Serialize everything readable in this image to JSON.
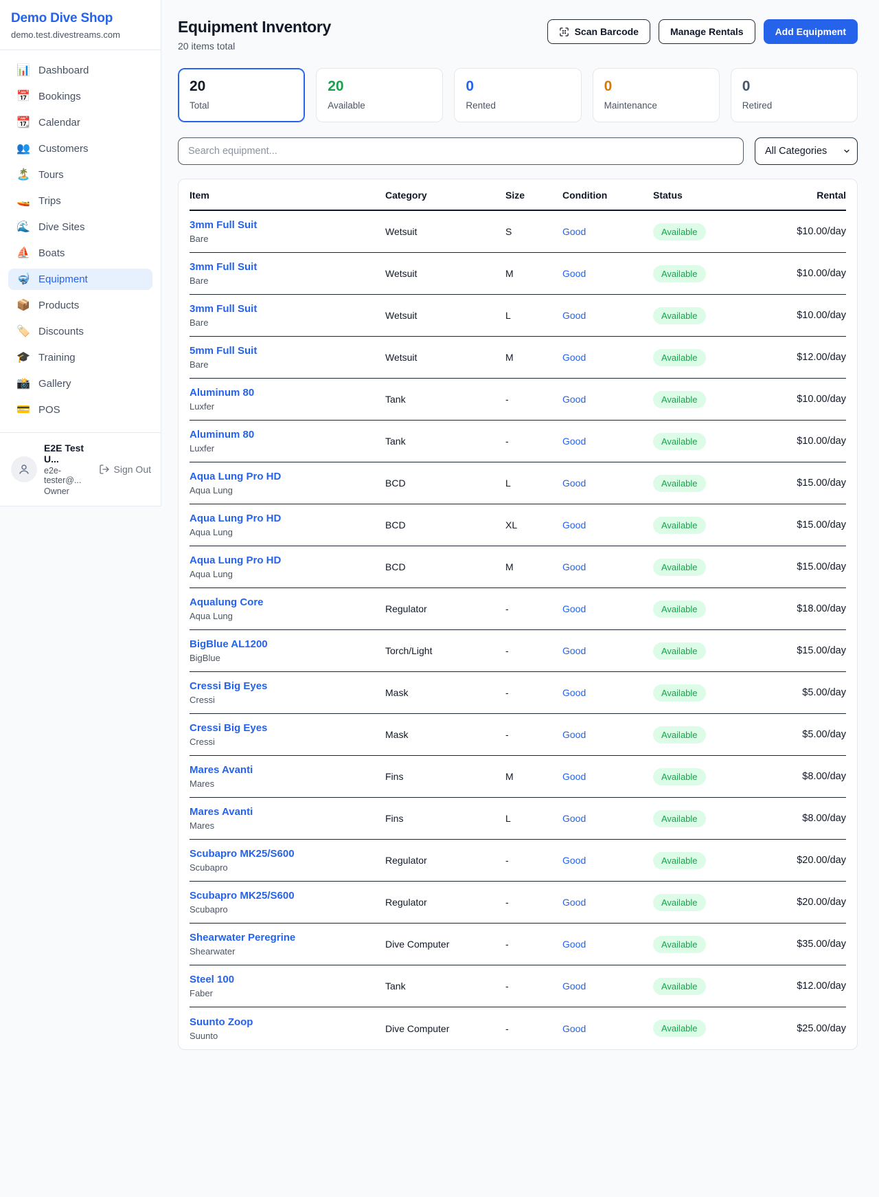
{
  "brand": {
    "name": "Demo Dive Shop",
    "domain": "demo.test.divestreams.com"
  },
  "sidebar": {
    "items": [
      {
        "id": "dashboard",
        "icon": "📊",
        "icon_name": "bar-chart-icon",
        "label": "Dashboard",
        "active": false
      },
      {
        "id": "bookings",
        "icon": "📅",
        "icon_name": "calendar-date-icon",
        "label": "Bookings",
        "active": false
      },
      {
        "id": "calendar",
        "icon": "📆",
        "icon_name": "tear-off-calendar-icon",
        "label": "Calendar",
        "active": false
      },
      {
        "id": "customers",
        "icon": "👥",
        "icon_name": "people-icon",
        "label": "Customers",
        "active": false
      },
      {
        "id": "tours",
        "icon": "🏝️",
        "icon_name": "island-icon",
        "label": "Tours",
        "active": false
      },
      {
        "id": "trips",
        "icon": "🚤",
        "icon_name": "speedboat-icon",
        "label": "Trips",
        "active": false
      },
      {
        "id": "dive-sites",
        "icon": "🌊",
        "icon_name": "wave-icon",
        "label": "Dive Sites",
        "active": false
      },
      {
        "id": "boats",
        "icon": "⛵",
        "icon_name": "sailboat-icon",
        "label": "Boats",
        "active": false
      },
      {
        "id": "equipment",
        "icon": "🤿",
        "icon_name": "diving-mask-icon",
        "label": "Equipment",
        "active": true
      },
      {
        "id": "products",
        "icon": "📦",
        "icon_name": "package-icon",
        "label": "Products",
        "active": false
      },
      {
        "id": "discounts",
        "icon": "🏷️",
        "icon_name": "tag-icon",
        "label": "Discounts",
        "active": false
      },
      {
        "id": "training",
        "icon": "🎓",
        "icon_name": "graduation-cap-icon",
        "label": "Training",
        "active": false
      },
      {
        "id": "gallery",
        "icon": "📸",
        "icon_name": "camera-flash-icon",
        "label": "Gallery",
        "active": false
      },
      {
        "id": "pos",
        "icon": "💳",
        "icon_name": "credit-card-icon",
        "label": "POS",
        "active": false
      }
    ]
  },
  "user": {
    "name": "E2E Test U...",
    "email": "e2e-tester@...",
    "role": "Owner",
    "sign_out_label": "Sign Out"
  },
  "header": {
    "title": "Equipment Inventory",
    "subtitle": "20 items total",
    "scan_button": "Scan Barcode",
    "manage_button": "Manage Rentals",
    "add_button": "Add Equipment"
  },
  "stats": [
    {
      "value": "20",
      "label": "Total",
      "color": "#111827",
      "selected": true
    },
    {
      "value": "20",
      "label": "Available",
      "color": "#16a34a",
      "selected": false
    },
    {
      "value": "0",
      "label": "Rented",
      "color": "#2563eb",
      "selected": false
    },
    {
      "value": "0",
      "label": "Maintenance",
      "color": "#d97706",
      "selected": false
    },
    {
      "value": "0",
      "label": "Retired",
      "color": "#475569",
      "selected": false
    }
  ],
  "filters": {
    "search_placeholder": "Search equipment...",
    "category_selected": "All Categories"
  },
  "table": {
    "columns": [
      "Item",
      "Category",
      "Size",
      "Condition",
      "Status",
      "Rental"
    ],
    "rows": [
      {
        "name": "3mm Full Suit",
        "brand": "Bare",
        "category": "Wetsuit",
        "size": "S",
        "condition": "Good",
        "status": "Available",
        "rental": "$10.00/day"
      },
      {
        "name": "3mm Full Suit",
        "brand": "Bare",
        "category": "Wetsuit",
        "size": "M",
        "condition": "Good",
        "status": "Available",
        "rental": "$10.00/day"
      },
      {
        "name": "3mm Full Suit",
        "brand": "Bare",
        "category": "Wetsuit",
        "size": "L",
        "condition": "Good",
        "status": "Available",
        "rental": "$10.00/day"
      },
      {
        "name": "5mm Full Suit",
        "brand": "Bare",
        "category": "Wetsuit",
        "size": "M",
        "condition": "Good",
        "status": "Available",
        "rental": "$12.00/day"
      },
      {
        "name": "Aluminum 80",
        "brand": "Luxfer",
        "category": "Tank",
        "size": "-",
        "condition": "Good",
        "status": "Available",
        "rental": "$10.00/day"
      },
      {
        "name": "Aluminum 80",
        "brand": "Luxfer",
        "category": "Tank",
        "size": "-",
        "condition": "Good",
        "status": "Available",
        "rental": "$10.00/day"
      },
      {
        "name": "Aqua Lung Pro HD",
        "brand": "Aqua Lung",
        "category": "BCD",
        "size": "L",
        "condition": "Good",
        "status": "Available",
        "rental": "$15.00/day"
      },
      {
        "name": "Aqua Lung Pro HD",
        "brand": "Aqua Lung",
        "category": "BCD",
        "size": "XL",
        "condition": "Good",
        "status": "Available",
        "rental": "$15.00/day"
      },
      {
        "name": "Aqua Lung Pro HD",
        "brand": "Aqua Lung",
        "category": "BCD",
        "size": "M",
        "condition": "Good",
        "status": "Available",
        "rental": "$15.00/day"
      },
      {
        "name": "Aqualung Core",
        "brand": "Aqua Lung",
        "category": "Regulator",
        "size": "-",
        "condition": "Good",
        "status": "Available",
        "rental": "$18.00/day"
      },
      {
        "name": "BigBlue AL1200",
        "brand": "BigBlue",
        "category": "Torch/Light",
        "size": "-",
        "condition": "Good",
        "status": "Available",
        "rental": "$15.00/day"
      },
      {
        "name": "Cressi Big Eyes",
        "brand": "Cressi",
        "category": "Mask",
        "size": "-",
        "condition": "Good",
        "status": "Available",
        "rental": "$5.00/day"
      },
      {
        "name": "Cressi Big Eyes",
        "brand": "Cressi",
        "category": "Mask",
        "size": "-",
        "condition": "Good",
        "status": "Available",
        "rental": "$5.00/day"
      },
      {
        "name": "Mares Avanti",
        "brand": "Mares",
        "category": "Fins",
        "size": "M",
        "condition": "Good",
        "status": "Available",
        "rental": "$8.00/day"
      },
      {
        "name": "Mares Avanti",
        "brand": "Mares",
        "category": "Fins",
        "size": "L",
        "condition": "Good",
        "status": "Available",
        "rental": "$8.00/day"
      },
      {
        "name": "Scubapro MK25/S600",
        "brand": "Scubapro",
        "category": "Regulator",
        "size": "-",
        "condition": "Good",
        "status": "Available",
        "rental": "$20.00/day"
      },
      {
        "name": "Scubapro MK25/S600",
        "brand": "Scubapro",
        "category": "Regulator",
        "size": "-",
        "condition": "Good",
        "status": "Available",
        "rental": "$20.00/day"
      },
      {
        "name": "Shearwater Peregrine",
        "brand": "Shearwater",
        "category": "Dive Computer",
        "size": "-",
        "condition": "Good",
        "status": "Available",
        "rental": "$35.00/day"
      },
      {
        "name": "Steel 100",
        "brand": "Faber",
        "category": "Tank",
        "size": "-",
        "condition": "Good",
        "status": "Available",
        "rental": "$12.00/day"
      },
      {
        "name": "Suunto Zoop",
        "brand": "Suunto",
        "category": "Dive Computer",
        "size": "-",
        "condition": "Good",
        "status": "Available",
        "rental": "$25.00/day"
      }
    ]
  },
  "colors": {
    "accent_blue": "#2563eb",
    "available_green": "#16a34a",
    "badge_bg_green": "#dcfce7",
    "maintenance_orange": "#d97706"
  }
}
